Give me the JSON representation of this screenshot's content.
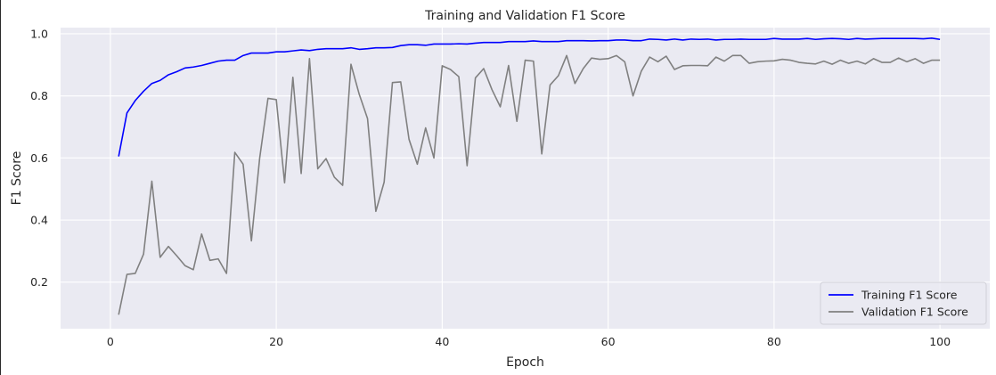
{
  "chart_data": {
    "type": "line",
    "title": "Training and Validation F1 Score",
    "xlabel": "Epoch",
    "ylabel": "F1 Score",
    "xlim": [
      -6,
      106
    ],
    "ylim": [
      0.05,
      1.02
    ],
    "xticks": [
      0,
      20,
      40,
      60,
      80,
      100
    ],
    "yticks": [
      0.2,
      0.4,
      0.6,
      0.8,
      1.0
    ],
    "xtick_labels": [
      "0",
      "20",
      "40",
      "60",
      "80",
      "100"
    ],
    "ytick_labels": [
      "0.2",
      "0.4",
      "0.6",
      "0.8",
      "1.0"
    ],
    "grid": true,
    "legend_position": "lower-right",
    "x": [
      1,
      2,
      3,
      4,
      5,
      6,
      7,
      8,
      9,
      10,
      11,
      12,
      13,
      14,
      15,
      16,
      17,
      18,
      19,
      20,
      21,
      22,
      23,
      24,
      25,
      26,
      27,
      28,
      29,
      30,
      31,
      32,
      33,
      34,
      35,
      36,
      37,
      38,
      39,
      40,
      41,
      42,
      43,
      44,
      45,
      46,
      47,
      48,
      49,
      50,
      51,
      52,
      53,
      54,
      55,
      56,
      57,
      58,
      59,
      60,
      61,
      62,
      63,
      64,
      65,
      66,
      67,
      68,
      69,
      70,
      71,
      72,
      73,
      74,
      75,
      76,
      77,
      78,
      79,
      80,
      81,
      82,
      83,
      84,
      85,
      86,
      87,
      88,
      89,
      90,
      91,
      92,
      93,
      94,
      95,
      96,
      97,
      98,
      99,
      100
    ],
    "series": [
      {
        "name": "Training F1 Score",
        "color": "#0000ff",
        "values": [
          0.605,
          0.745,
          0.785,
          0.815,
          0.84,
          0.85,
          0.868,
          0.878,
          0.89,
          0.893,
          0.898,
          0.905,
          0.912,
          0.915,
          0.915,
          0.93,
          0.938,
          0.938,
          0.938,
          0.942,
          0.942,
          0.945,
          0.948,
          0.946,
          0.95,
          0.952,
          0.952,
          0.952,
          0.955,
          0.95,
          0.952,
          0.955,
          0.955,
          0.956,
          0.962,
          0.965,
          0.965,
          0.963,
          0.967,
          0.967,
          0.967,
          0.968,
          0.967,
          0.97,
          0.972,
          0.972,
          0.972,
          0.975,
          0.975,
          0.975,
          0.977,
          0.975,
          0.975,
          0.975,
          0.978,
          0.978,
          0.978,
          0.977,
          0.978,
          0.978,
          0.98,
          0.98,
          0.978,
          0.978,
          0.983,
          0.982,
          0.98,
          0.983,
          0.98,
          0.983,
          0.982,
          0.983,
          0.98,
          0.982,
          0.982,
          0.983,
          0.982,
          0.982,
          0.982,
          0.985,
          0.983,
          0.983,
          0.983,
          0.985,
          0.982,
          0.984,
          0.985,
          0.984,
          0.982,
          0.985,
          0.983,
          0.984,
          0.985,
          0.985,
          0.985,
          0.985,
          0.985,
          0.984,
          0.986,
          0.982
        ]
      },
      {
        "name": "Validation F1 Score",
        "color": "#808080",
        "values": [
          0.095,
          0.225,
          0.228,
          0.29,
          0.525,
          0.28,
          0.315,
          0.285,
          0.253,
          0.24,
          0.355,
          0.27,
          0.275,
          0.228,
          0.618,
          0.58,
          0.333,
          0.6,
          0.792,
          0.788,
          0.52,
          0.86,
          0.55,
          0.92,
          0.565,
          0.598,
          0.538,
          0.512,
          0.902,
          0.805,
          0.727,
          0.428,
          0.522,
          0.843,
          0.845,
          0.66,
          0.58,
          0.697,
          0.6,
          0.897,
          0.885,
          0.862,
          0.575,
          0.858,
          0.888,
          0.82,
          0.765,
          0.898,
          0.718,
          0.915,
          0.912,
          0.613,
          0.835,
          0.865,
          0.93,
          0.84,
          0.888,
          0.922,
          0.918,
          0.92,
          0.93,
          0.91,
          0.8,
          0.88,
          0.925,
          0.91,
          0.928,
          0.885,
          0.897,
          0.898,
          0.898,
          0.897,
          0.925,
          0.912,
          0.93,
          0.93,
          0.905,
          0.91,
          0.912,
          0.913,
          0.918,
          0.915,
          0.908,
          0.905,
          0.903,
          0.912,
          0.902,
          0.915,
          0.905,
          0.912,
          0.903,
          0.92,
          0.908,
          0.908,
          0.922,
          0.91,
          0.92,
          0.905,
          0.915,
          0.915
        ]
      }
    ]
  }
}
